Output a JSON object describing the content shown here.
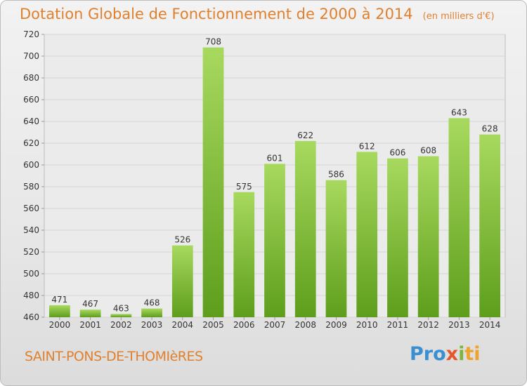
{
  "chart_data": {
    "type": "bar",
    "title": "Dotation Globale de Fonctionnement de 2000 à 2014",
    "unit": "(en milliers d'€)",
    "categories": [
      "2000",
      "2001",
      "2002",
      "2003",
      "2004",
      "2005",
      "2006",
      "2007",
      "2008",
      "2009",
      "2010",
      "2011",
      "2012",
      "2013",
      "2014"
    ],
    "values": [
      471,
      467,
      463,
      468,
      526,
      708,
      575,
      601,
      622,
      586,
      612,
      606,
      608,
      643,
      628
    ],
    "ylim": [
      460,
      720
    ],
    "yticks": [
      460,
      480,
      500,
      520,
      540,
      560,
      580,
      600,
      620,
      640,
      660,
      680,
      700,
      720
    ],
    "grid": true,
    "bar_color": "#7fbf3a"
  },
  "footer": {
    "commune": "SAINT-PONS-DE-THOMIèRES",
    "logo_parts": [
      "Pro",
      "x",
      "i",
      "ti"
    ]
  }
}
